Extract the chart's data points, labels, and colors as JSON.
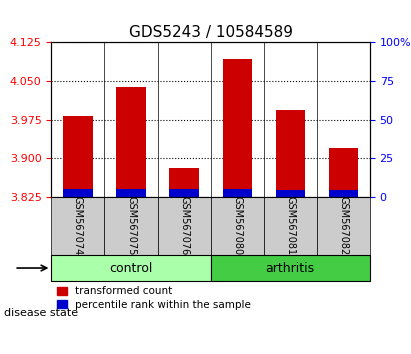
{
  "title": "GDS5243 / 10584589",
  "samples": [
    "GSM567074",
    "GSM567075",
    "GSM567076",
    "GSM567080",
    "GSM567081",
    "GSM567082"
  ],
  "groups": [
    "control",
    "control",
    "control",
    "arthritis",
    "arthritis",
    "arthritis"
  ],
  "red_top": [
    3.983,
    4.038,
    3.882,
    4.093,
    3.993,
    3.92
  ],
  "red_bottom": [
    3.825,
    3.825,
    3.825,
    3.825,
    3.825,
    3.825
  ],
  "blue_top": [
    3.84,
    3.84,
    3.84,
    3.84,
    3.838,
    3.838
  ],
  "blue_bottom": [
    3.825,
    3.825,
    3.825,
    3.825,
    3.825,
    3.825
  ],
  "ylim": [
    3.825,
    4.125
  ],
  "yticks": [
    3.825,
    3.9,
    3.975,
    4.05,
    4.125
  ],
  "right_yticks": [
    0,
    25,
    50,
    75,
    100
  ],
  "right_ylim": [
    0,
    100
  ],
  "bar_width": 0.55,
  "red_color": "#cc0000",
  "blue_color": "#0000cc",
  "control_color": "#aaffaa",
  "arthritis_color": "#44cc44",
  "label_bg_color": "#cccccc",
  "legend_red": "transformed count",
  "legend_blue": "percentile rank within the sample",
  "group_label": "disease state",
  "group_control": "control",
  "group_arthritis": "arthritis",
  "title_fontsize": 11,
  "tick_fontsize": 8,
  "label_fontsize": 9
}
